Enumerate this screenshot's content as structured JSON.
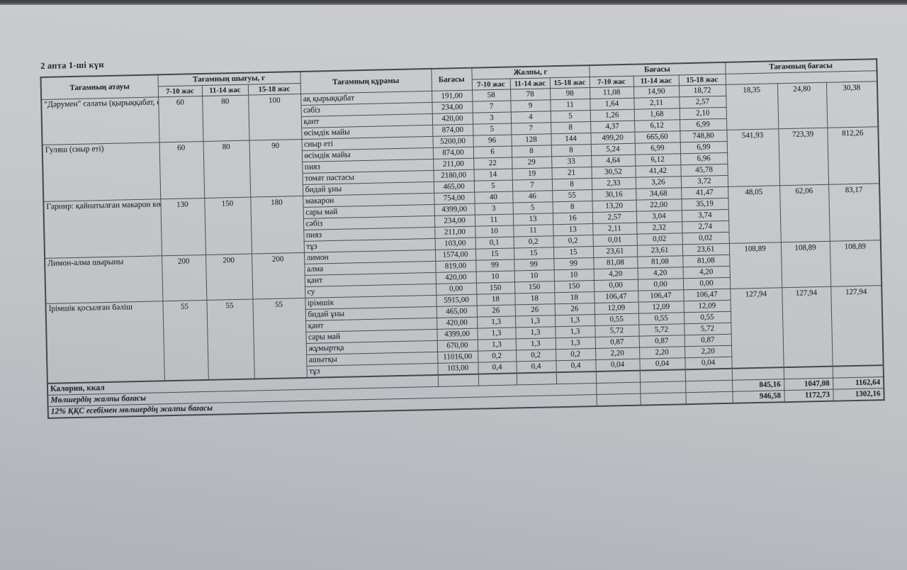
{
  "page_title": "2 апта 1-ші күн",
  "colors": {
    "paper": "#c6c9cb",
    "ink": "#292a32",
    "table_border": "#45464c"
  },
  "table": {
    "headers": {
      "dish_name": "Тағамның атауы",
      "output_group": "Тағамның шығуы, г",
      "composition": "Тағамның құрамы",
      "unit_price": "Бағасы",
      "total_g_group": "Жалпы, г",
      "price_group": "Бағасы",
      "dish_price_group": "Тағамның бағасы",
      "age_labels": [
        "7-10 жас",
        "11-14 жас",
        "15-18 жас"
      ]
    },
    "dishes": [
      {
        "name": "\"Дәрумен\" салаты (қырыққабат, сәбіз)",
        "output": [
          "60",
          "80",
          "100"
        ],
        "totals": [
          "18,35",
          "24,80",
          "30,38"
        ],
        "ingredients": [
          {
            "name": "ақ қырыққабат",
            "unit_price": "191,00",
            "amounts": [
              "58",
              "78",
              "98"
            ],
            "prices": [
              "11,08",
              "14,90",
              "18,72"
            ]
          },
          {
            "name": "сәбіз",
            "unit_price": "234,00",
            "amounts": [
              "7",
              "9",
              "11"
            ],
            "prices": [
              "1,64",
              "2,11",
              "2,57"
            ]
          },
          {
            "name": "қант",
            "unit_price": "420,00",
            "amounts": [
              "3",
              "4",
              "5"
            ],
            "prices": [
              "1,26",
              "1,68",
              "2,10"
            ]
          },
          {
            "name": "өсімдік майы",
            "unit_price": "874,00",
            "amounts": [
              "5",
              "7",
              "8"
            ],
            "prices": [
              "4,37",
              "6,12",
              "6,99"
            ]
          }
        ]
      },
      {
        "name": "Гуляш (сиыр еті)",
        "output": [
          "60",
          "80",
          "90"
        ],
        "totals": [
          "541,93",
          "723,39",
          "812,26"
        ],
        "ingredients": [
          {
            "name": "сиыр еті",
            "unit_price": "5200,00",
            "amounts": [
              "96",
              "128",
              "144"
            ],
            "prices": [
              "499,20",
              "665,60",
              "748,80"
            ]
          },
          {
            "name": "өсімдік майы",
            "unit_price": "874,00",
            "amounts": [
              "6",
              "8",
              "8"
            ],
            "prices": [
              "5,24",
              "6,99",
              "6,99"
            ]
          },
          {
            "name": "пияз",
            "unit_price": "211,00",
            "amounts": [
              "22",
              "29",
              "33"
            ],
            "prices": [
              "4,64",
              "6,12",
              "6,96"
            ]
          },
          {
            "name": "томат пастасы",
            "unit_price": "2180,00",
            "amounts": [
              "14",
              "19",
              "21"
            ],
            "prices": [
              "30,52",
              "41,42",
              "45,78"
            ]
          },
          {
            "name": "бидай ұны",
            "unit_price": "465,00",
            "amounts": [
              "5",
              "7",
              "8"
            ],
            "prices": [
              "2,33",
              "3,26",
              "3,72"
            ]
          }
        ]
      },
      {
        "name": "Гарнир: қайнатылған макарон көкеністермен",
        "output": [
          "130",
          "150",
          "180"
        ],
        "totals": [
          "48,05",
          "62,06",
          "83,17"
        ],
        "ingredients": [
          {
            "name": "макарон",
            "unit_price": "754,00",
            "amounts": [
              "40",
              "46",
              "55"
            ],
            "prices": [
              "30,16",
              "34,68",
              "41,47"
            ]
          },
          {
            "name": "сары май",
            "unit_price": "4399,00",
            "amounts": [
              "3",
              "5",
              "8"
            ],
            "prices": [
              "13,20",
              "22,00",
              "35,19"
            ]
          },
          {
            "name": "сәбіз",
            "unit_price": "234,00",
            "amounts": [
              "11",
              "13",
              "16"
            ],
            "prices": [
              "2,57",
              "3,04",
              "3,74"
            ]
          },
          {
            "name": "пияз",
            "unit_price": "211,00",
            "amounts": [
              "10",
              "11",
              "13"
            ],
            "prices": [
              "2,11",
              "2,32",
              "2,74"
            ]
          },
          {
            "name": "тұз",
            "unit_price": "103,00",
            "amounts": [
              "0,1",
              "0,2",
              "0,2"
            ],
            "prices": [
              "0,01",
              "0,02",
              "0,02"
            ]
          }
        ]
      },
      {
        "name": "Лимон-алма шырыны",
        "output": [
          "200",
          "200",
          "200"
        ],
        "totals": [
          "108,89",
          "108,89",
          "108,89"
        ],
        "ingredients": [
          {
            "name": "лимон",
            "unit_price": "1574,00",
            "amounts": [
              "15",
              "15",
              "15"
            ],
            "prices": [
              "23,61",
              "23,61",
              "23,61"
            ]
          },
          {
            "name": "алма",
            "unit_price": "819,00",
            "amounts": [
              "99",
              "99",
              "99"
            ],
            "prices": [
              "81,08",
              "81,08",
              "81,08"
            ]
          },
          {
            "name": "қант",
            "unit_price": "420,00",
            "amounts": [
              "10",
              "10",
              "10"
            ],
            "prices": [
              "4,20",
              "4,20",
              "4,20"
            ]
          },
          {
            "name": "су",
            "unit_price": "0,00",
            "amounts": [
              "150",
              "150",
              "150"
            ],
            "prices": [
              "0,00",
              "0,00",
              "0,00"
            ]
          }
        ]
      },
      {
        "name": "Ірімшік қосылған бәліш",
        "output": [
          "55",
          "55",
          "55"
        ],
        "totals": [
          "127,94",
          "127,94",
          "127,94"
        ],
        "ingredients": [
          {
            "name": "ірімшік",
            "unit_price": "5915,00",
            "amounts": [
              "18",
              "18",
              "18"
            ],
            "prices": [
              "106,47",
              "106,47",
              "106,47"
            ]
          },
          {
            "name": "бидай ұны",
            "unit_price": "465,00",
            "amounts": [
              "26",
              "26",
              "26"
            ],
            "prices": [
              "12,09",
              "12,09",
              "12,09"
            ]
          },
          {
            "name": "қант",
            "unit_price": "420,00",
            "amounts": [
              "1,3",
              "1,3",
              "1,3"
            ],
            "prices": [
              "0,55",
              "0,55",
              "0,55"
            ]
          },
          {
            "name": "сары май",
            "unit_price": "4399,00",
            "amounts": [
              "1,3",
              "1,3",
              "1,3"
            ],
            "prices": [
              "5,72",
              "5,72",
              "5,72"
            ]
          },
          {
            "name": "жұмыртқа",
            "unit_price": "670,00",
            "amounts": [
              "1,3",
              "1,3",
              "1,3"
            ],
            "prices": [
              "0,87",
              "0,87",
              "0,87"
            ]
          },
          {
            "name": "ашытқы",
            "unit_price": "11016,00",
            "amounts": [
              "0,2",
              "0,2",
              "0,2"
            ],
            "prices": [
              "2,20",
              "2,20",
              "2,20"
            ]
          },
          {
            "name": "тұз",
            "unit_price": "103,00",
            "amounts": [
              "0,4",
              "0,4",
              "0,4"
            ],
            "prices": [
              "0,04",
              "0,04",
              "0,04"
            ]
          }
        ]
      }
    ],
    "footer_rows": [
      {
        "label": "Калория, ккал",
        "italic": false,
        "values": [
          "",
          "",
          ""
        ]
      },
      {
        "label": "Мөлшердің жалпы бағасы",
        "italic": true,
        "values": [
          "845,16",
          "1047,08",
          "1162,64"
        ]
      },
      {
        "label": "12%  ҚҚС есебімен мөлшердің жалпы бағасы",
        "italic": true,
        "values": [
          "946,58",
          "1172,73",
          "1302,16"
        ]
      }
    ]
  }
}
